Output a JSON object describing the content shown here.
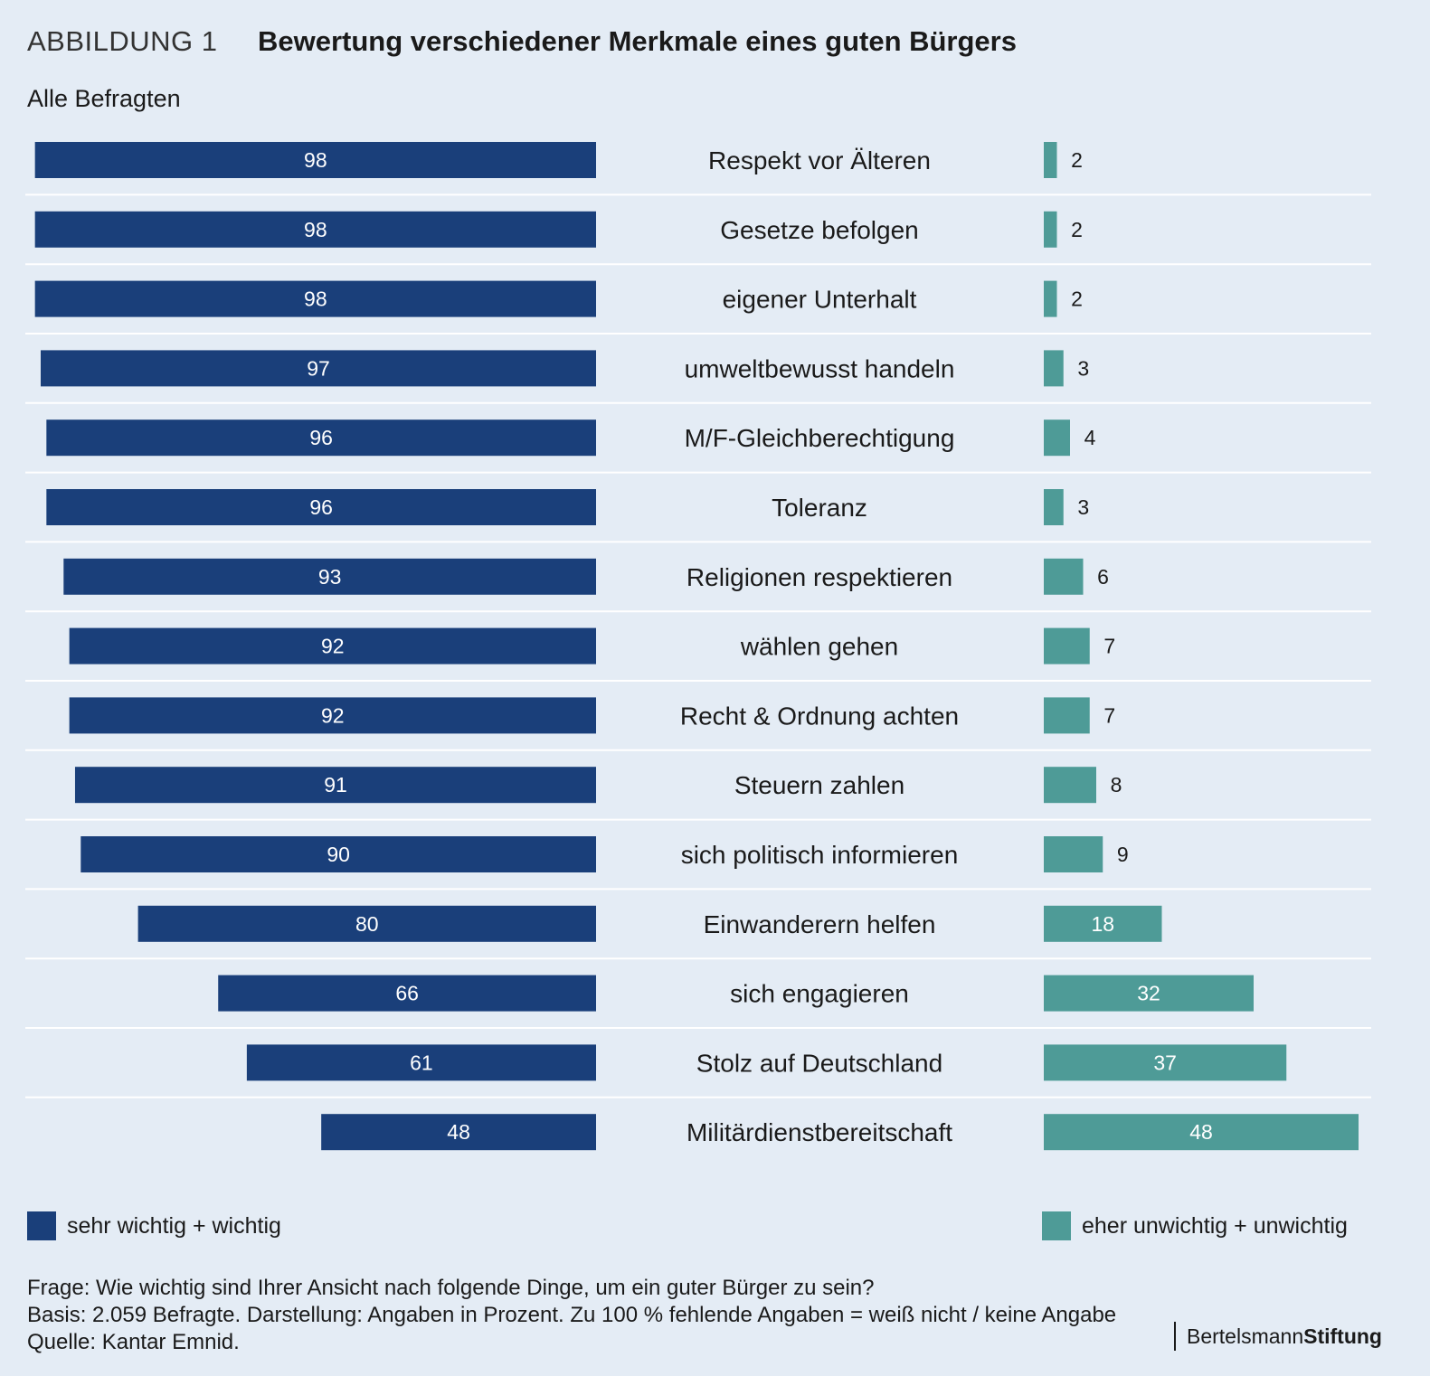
{
  "header": {
    "figure_label": "ABBILDUNG 1",
    "title": "Bewertung verschiedener Merkmale eines guten Bürgers",
    "subtitle": "Alle Befragten"
  },
  "colors": {
    "important": "#1a3f7a",
    "unimportant": "#4e9b97",
    "background": "#e4ecf5",
    "divider": "#ffffff"
  },
  "chart_data": {
    "type": "bar",
    "orientation": "horizontal-diverging",
    "title": "Bewertung verschiedener Merkmale eines guten Bürgers",
    "unit": "Prozent",
    "categories": [
      "Respekt vor Älteren",
      "Gesetze befolgen",
      "eigener Unterhalt",
      "umweltbewusst handeln",
      "M/F-Gleichberechtigung",
      "Toleranz",
      "Religionen respektieren",
      "wählen gehen",
      "Recht & Ordnung achten",
      "Steuern zahlen",
      "sich politisch informieren",
      "Einwanderern helfen",
      "sich engagieren",
      "Stolz auf Deutschland",
      "Militärdienstbereitschaft"
    ],
    "series": [
      {
        "name": "sehr wichtig + wichtig",
        "values": [
          98,
          98,
          98,
          97,
          96,
          96,
          93,
          92,
          92,
          91,
          90,
          80,
          66,
          61,
          48
        ]
      },
      {
        "name": "eher unwichtig + unwichtig",
        "values": [
          2,
          2,
          2,
          3,
          4,
          3,
          6,
          7,
          7,
          8,
          9,
          18,
          32,
          37,
          48
        ]
      }
    ],
    "xlim": [
      0,
      100
    ]
  },
  "legend": {
    "important": "sehr wichtig + wichtig",
    "unimportant": "eher unwichtig + unwichtig"
  },
  "footer": {
    "question": "Frage: Wie wichtig sind Ihrer Ansicht nach folgende Dinge, um ein guter Bürger zu sein?",
    "basis": "Basis:  2.059 Befragte. Darstellung: Angaben in Prozent. Zu 100 % fehlende Angaben = weiß nicht / keine Angabe",
    "source": "Quelle: Kantar Emnid."
  },
  "brand": {
    "part1": "Bertelsmann",
    "part2": "Stiftung"
  }
}
